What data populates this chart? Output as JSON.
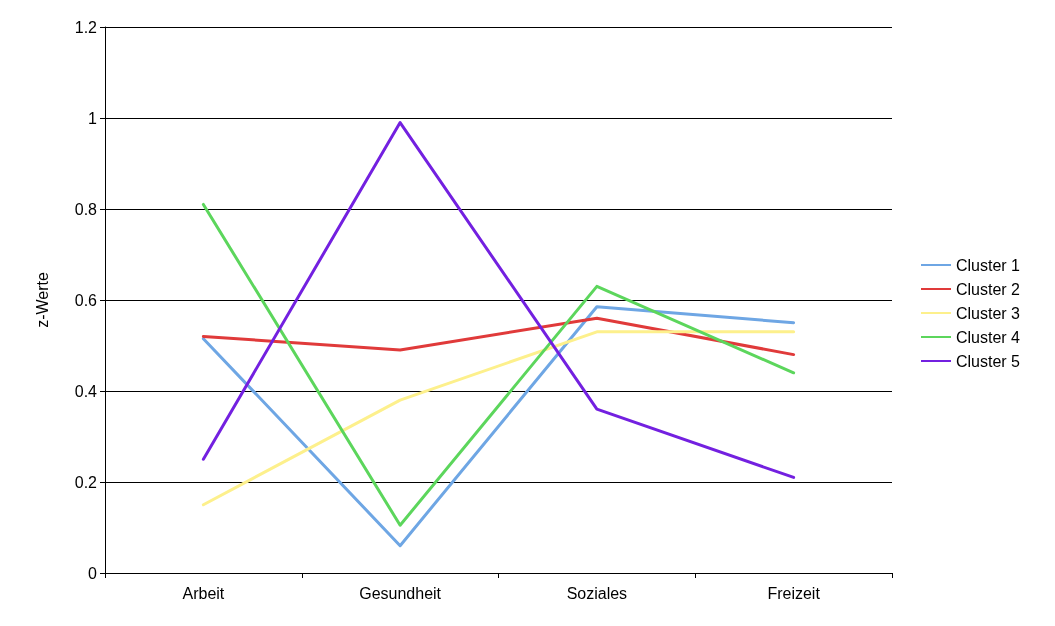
{
  "chart_data": {
    "type": "line",
    "ylabel": "z-Werte",
    "categories": [
      "Arbeit",
      "Gesundheit",
      "Soziales",
      "Freizeit"
    ],
    "series": [
      {
        "name": "Cluster 1",
        "color": "#6ea6e4",
        "values": [
          0.515,
          0.06,
          0.585,
          0.55
        ]
      },
      {
        "name": "Cluster 2",
        "color": "#e03a3a",
        "values": [
          0.52,
          0.49,
          0.56,
          0.48
        ]
      },
      {
        "name": "Cluster 3",
        "color": "#fdf08c",
        "values": [
          0.15,
          0.38,
          0.53,
          0.53
        ]
      },
      {
        "name": "Cluster 4",
        "color": "#5cd65c",
        "values": [
          0.81,
          0.105,
          0.63,
          0.44
        ]
      },
      {
        "name": "Cluster 5",
        "color": "#7320e0",
        "values": [
          0.25,
          0.99,
          0.36,
          0.21
        ]
      }
    ],
    "ylim": [
      0,
      1.2
    ],
    "yticks": [
      0,
      0.2,
      0.4,
      0.6,
      0.8,
      1,
      1.2
    ],
    "grid": "y",
    "legend": "right",
    "marker": "none",
    "line_style": "solid"
  }
}
